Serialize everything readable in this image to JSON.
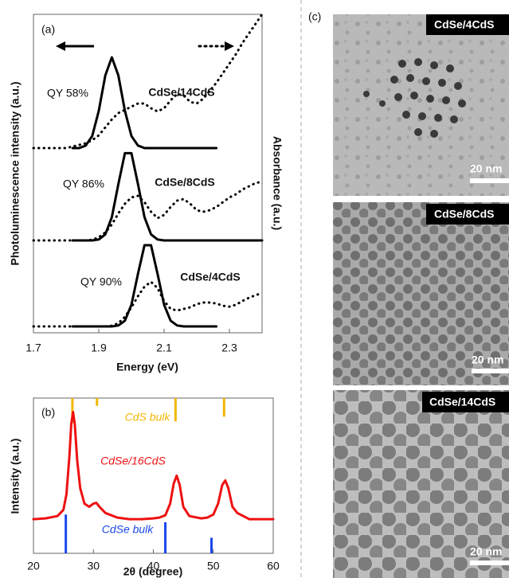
{
  "chart_data": [
    {
      "type": "line",
      "panel_label": "(a)",
      "x_label": "Energy (eV)",
      "y_label": "Photoluminescence intensity (a.u.)",
      "y2_label": "Absorbance (a.u.)",
      "xlim": [
        1.7,
        2.4
      ],
      "xticks": [
        {
          "value": 1.7,
          "label": "1.7"
        },
        {
          "value": 1.9,
          "label": "1.9"
        },
        {
          "value": 2.1,
          "label": "2.1"
        },
        {
          "value": 2.3,
          "label": "2.3"
        }
      ],
      "ylim": [
        0,
        10
      ],
      "y2lim": [
        0,
        10
      ],
      "x": [
        1.7,
        1.72,
        1.74,
        1.76,
        1.78,
        1.8,
        1.82,
        1.84,
        1.86,
        1.88,
        1.9,
        1.92,
        1.94,
        1.96,
        1.98,
        2.0,
        2.02,
        2.04,
        2.06,
        2.08,
        2.1,
        2.12,
        2.14,
        2.16,
        2.18,
        2.2,
        2.22,
        2.24,
        2.26,
        2.28,
        2.3,
        2.32,
        2.34,
        2.36,
        2.38,
        2.4
      ],
      "annotations": [
        "QY 58%",
        "QY 86%",
        "QY 90%"
      ],
      "series": [
        {
          "name": "CdSe/14CdS",
          "color": "#000000",
          "style": "solid",
          "values": [
            null,
            null,
            null,
            null,
            null,
            null,
            5.8,
            5.8,
            5.88,
            6.18,
            6.97,
            8.08,
            8.65,
            8.08,
            6.97,
            6.18,
            5.88,
            5.8,
            5.8,
            5.8,
            5.8,
            5.8,
            5.8,
            5.8,
            5.8,
            5.8,
            5.8,
            5.8,
            5.8,
            null,
            null,
            null,
            null,
            null,
            null,
            null
          ]
        },
        {
          "color": "#000000",
          "style": "dotted",
          "axis": "y2",
          "values": [
            5.8,
            5.8,
            5.8,
            5.8,
            5.8,
            5.8,
            5.85,
            5.9,
            5.95,
            6.05,
            6.2,
            6.45,
            6.7,
            6.9,
            7.0,
            7.1,
            7.2,
            7.2,
            7.05,
            6.95,
            7.05,
            7.3,
            7.5,
            7.45,
            7.25,
            7.2,
            7.35,
            7.6,
            7.85,
            8.15,
            8.45,
            8.75,
            9.1,
            9.4,
            9.7,
            10.0
          ]
        },
        {
          "name": "CdSe/8CdS",
          "color": "#000000",
          "style": "solid",
          "values": [
            null,
            null,
            null,
            null,
            null,
            null,
            2.9,
            2.9,
            2.9,
            2.9,
            2.93,
            3.09,
            3.63,
            4.67,
            5.64,
            5.64,
            4.67,
            3.63,
            3.09,
            2.93,
            2.9,
            2.9,
            2.9,
            2.9,
            2.9,
            2.9,
            2.9,
            2.9,
            2.9,
            2.9,
            2.9,
            2.9,
            2.9,
            2.9,
            2.9,
            2.9
          ]
        },
        {
          "color": "#000000",
          "style": "dotted",
          "axis": "y2",
          "values": [
            2.9,
            2.9,
            2.9,
            2.9,
            2.9,
            2.9,
            2.9,
            2.9,
            2.9,
            2.92,
            3.0,
            3.15,
            3.4,
            3.75,
            4.05,
            4.25,
            4.3,
            4.1,
            3.8,
            3.6,
            3.7,
            3.95,
            4.15,
            4.2,
            4.05,
            3.85,
            3.8,
            3.85,
            3.95,
            4.1,
            4.25,
            4.35,
            4.5,
            4.6,
            4.7,
            4.75
          ]
        },
        {
          "name": "CdSe/4CdS",
          "color": "#000000",
          "style": "solid",
          "values": [
            null,
            null,
            null,
            null,
            null,
            null,
            0.2,
            0.2,
            0.2,
            0.2,
            0.2,
            0.2,
            0.2,
            0.23,
            0.38,
            0.88,
            1.85,
            2.75,
            2.75,
            1.85,
            0.88,
            0.38,
            0.23,
            0.2,
            0.2,
            0.2,
            0.2,
            0.2,
            0.2,
            null,
            null,
            null,
            null,
            null,
            null,
            null
          ]
        },
        {
          "color": "#000000",
          "style": "dotted",
          "axis": "y2",
          "values": [
            0.2,
            0.2,
            0.2,
            0.2,
            0.2,
            0.2,
            0.2,
            0.2,
            0.2,
            0.2,
            0.2,
            0.2,
            0.22,
            0.3,
            0.5,
            0.8,
            1.15,
            1.45,
            1.6,
            1.4,
            1.0,
            0.75,
            0.7,
            0.75,
            0.8,
            0.9,
            0.95,
            0.95,
            0.92,
            0.85,
            0.82,
            0.88,
            1.0,
            1.1,
            1.18,
            1.25
          ]
        }
      ]
    },
    {
      "type": "line",
      "panel_label": "(b)",
      "x_label": "2θ (degree)",
      "y_label": "Intensity (a.u.)",
      "xlim": [
        20,
        60
      ],
      "xticks": [
        20,
        30,
        40,
        50,
        60
      ],
      "ylim": [
        0,
        10
      ],
      "series": [
        {
          "name": "CdS bulk",
          "type": "sticks",
          "anchor": "top",
          "color": "#f2b705",
          "x": [
            26.5,
            30.6,
            43.7,
            51.8
          ],
          "values": [
            1.6,
            0.5,
            1.5,
            1.2
          ]
        },
        {
          "name": "CdSe bulk",
          "type": "sticks",
          "anchor": "bottom",
          "color": "#1a47e8",
          "x": [
            25.4,
            42.0,
            49.7
          ],
          "values": [
            2.5,
            2.0,
            1.0
          ]
        },
        {
          "name": "CdSe/16CdS",
          "color": "#ee1111",
          "style": "solid",
          "x": [
            20,
            22,
            24,
            25,
            25.5,
            26,
            26.3,
            26.6,
            26.9,
            27.3,
            27.8,
            28.5,
            29.3,
            30,
            30.5,
            31,
            32,
            34,
            36,
            38,
            40,
            41,
            42,
            42.8,
            43.4,
            43.9,
            44.4,
            45,
            46,
            48,
            49,
            50,
            50.8,
            51.5,
            52,
            52.5,
            53.2,
            54,
            55,
            56,
            58,
            60
          ],
          "values": [
            2.2,
            2.25,
            2.4,
            2.8,
            3.8,
            6.3,
            8.3,
            9.1,
            8.3,
            6.0,
            4.2,
            3.2,
            3.0,
            3.2,
            3.25,
            3.0,
            2.6,
            2.3,
            2.2,
            2.2,
            2.25,
            2.3,
            2.45,
            3.2,
            4.5,
            5.0,
            4.4,
            3.0,
            2.4,
            2.25,
            2.3,
            2.5,
            3.2,
            4.4,
            4.7,
            4.2,
            3.0,
            2.6,
            2.4,
            2.2,
            2.2,
            2.2
          ]
        }
      ]
    }
  ],
  "panel_c": {
    "label": "(c)",
    "images": [
      {
        "label": "CdSe/4CdS",
        "scale_bar": "20 nm"
      },
      {
        "label": "CdSe/8CdS",
        "scale_bar": "20 nm"
      },
      {
        "label": "CdSe/14CdS",
        "scale_bar": "20 nm"
      }
    ]
  }
}
